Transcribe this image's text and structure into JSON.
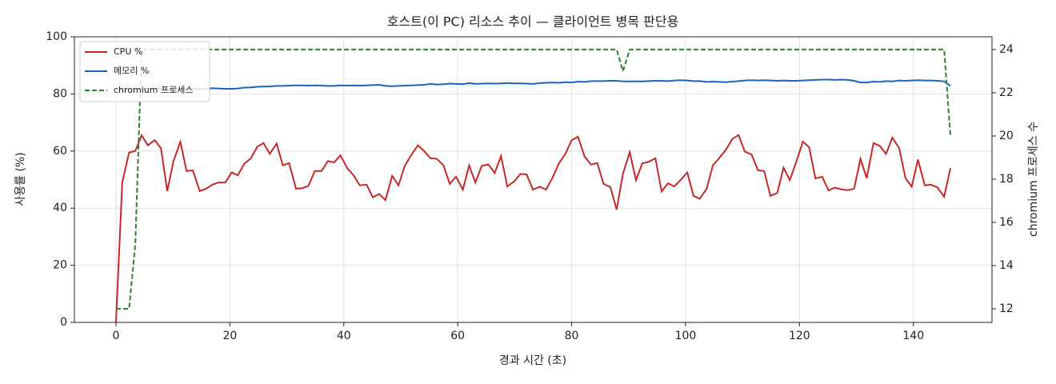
{
  "chart_data": {
    "type": "line",
    "title": "호스트(이 PC) 리소스 추이 — 클라이언트 병목 판단용",
    "xlabel": "경과 시간 (초)",
    "ylabel": "사용률 (%)",
    "y2label": "chromium 프로세스 수",
    "x": [
      0,
      1.1,
      2.3,
      3.4,
      4.5,
      5.6,
      6.8,
      7.9,
      9.0,
      10.1,
      11.3,
      12.4,
      13.5,
      14.7,
      15.8,
      16.9,
      18.0,
      19.2,
      20.3,
      21.4,
      22.5,
      23.7,
      24.8,
      25.9,
      27.0,
      28.2,
      29.3,
      30.4,
      31.6,
      32.7,
      33.8,
      34.9,
      36.1,
      37.2,
      38.3,
      39.4,
      40.6,
      41.7,
      42.8,
      44.0,
      45.1,
      46.2,
      47.3,
      48.5,
      49.6,
      50.7,
      51.8,
      53.0,
      54.1,
      55.2,
      56.3,
      57.5,
      58.6,
      59.7,
      60.9,
      62.0,
      63.1,
      64.2,
      65.4,
      66.5,
      67.6,
      68.7,
      69.9,
      71.0,
      72.1,
      73.2,
      74.4,
      75.5,
      76.6,
      77.8,
      78.9,
      80.0,
      81.1,
      82.3,
      83.4,
      84.5,
      85.6,
      86.8,
      87.9,
      89.0,
      90.2,
      91.3,
      92.4,
      93.5,
      94.7,
      95.8,
      96.9,
      98.0,
      99.2,
      100.3,
      101.4,
      102.5,
      103.7,
      104.8,
      105.9,
      107.1,
      108.2,
      109.3,
      110.4,
      111.6,
      112.7,
      113.8,
      114.9,
      116.1,
      117.2,
      118.3,
      119.4,
      120.6,
      121.7,
      122.8,
      124.0,
      125.1,
      126.2,
      127.3,
      128.5,
      129.6,
      130.7,
      131.8,
      133.0,
      134.1,
      135.2,
      136.3,
      137.5,
      138.6,
      139.7,
      140.8,
      142.0,
      143.1,
      144.2,
      145.4,
      146.5
    ],
    "series": [
      {
        "name": "CPU %",
        "color": "#c62828",
        "dash": false,
        "values": [
          0,
          49,
          59.5,
          60,
          65.5,
          62,
          63.8,
          61,
          46,
          56.5,
          63.2,
          53,
          53.2,
          46,
          46.8,
          48.2,
          49,
          49,
          52.5,
          51.5,
          55.5,
          57.5,
          61.5,
          62.8,
          59,
          62.6,
          55,
          55.8,
          46.8,
          47,
          47.8,
          53,
          53,
          56.5,
          56,
          58.5,
          54,
          51.5,
          48,
          48.2,
          43.8,
          45,
          42.8,
          51.3,
          48,
          54.8,
          58.5,
          62,
          60,
          57.5,
          57.3,
          55,
          48.5,
          51,
          46.5,
          55,
          49,
          54.8,
          55.3,
          52.3,
          58.3,
          47.6,
          49.3,
          52,
          51.8,
          46.5,
          47.5,
          46.5,
          50.5,
          55.8,
          59,
          63.8,
          65,
          58,
          55.3,
          55.8,
          48.5,
          47.4,
          39.5,
          52,
          59.6,
          49.8,
          55.7,
          56.2,
          57.5,
          45.8,
          48.7,
          47.6,
          50,
          52.5,
          44.3,
          43.3,
          46.8,
          55,
          57.5,
          60.5,
          64.2,
          65.6,
          59.8,
          58.8,
          53.3,
          53,
          44.3,
          45.3,
          54.2,
          49.8,
          56,
          63.3,
          61.3,
          50.4,
          51,
          46.2,
          47.2,
          46.6,
          46.3,
          46.8,
          57.3,
          50.5,
          62.8,
          61.8,
          59,
          64.7,
          61,
          50.6,
          47.5,
          57,
          48,
          48.2,
          47.3,
          44,
          54
        ]
      },
      {
        "name": "메모리 %",
        "color": "#1565c0",
        "dash": false,
        "values": [
          81.5,
          81.6,
          81.7,
          81.8,
          81.8,
          81.8,
          81.8,
          81.8,
          81.8,
          81.8,
          81.8,
          81.8,
          81.9,
          81.7,
          81.8,
          82.0,
          81.9,
          81.8,
          81.8,
          81.9,
          82.2,
          82.3,
          82.5,
          82.6,
          82.6,
          82.8,
          82.8,
          82.9,
          83.0,
          83.0,
          82.9,
          83.0,
          82.9,
          82.8,
          82.8,
          83.0,
          82.9,
          83.0,
          82.9,
          83.0,
          83.1,
          83.2,
          82.8,
          82.7,
          82.8,
          82.9,
          83.0,
          83.1,
          83.2,
          83.5,
          83.3,
          83.4,
          83.6,
          83.5,
          83.4,
          83.8,
          83.5,
          83.6,
          83.7,
          83.6,
          83.7,
          83.8,
          83.7,
          83.7,
          83.6,
          83.5,
          83.8,
          83.9,
          84.0,
          83.9,
          84.1,
          84.0,
          84.3,
          84.2,
          84.5,
          84.5,
          84.5,
          84.6,
          84.6,
          84.4,
          84.4,
          84.4,
          84.4,
          84.5,
          84.6,
          84.6,
          84.5,
          84.7,
          84.8,
          84.7,
          84.5,
          84.5,
          84.2,
          84.3,
          84.2,
          84.1,
          84.3,
          84.5,
          84.7,
          84.8,
          84.7,
          84.8,
          84.7,
          84.6,
          84.7,
          84.6,
          84.6,
          84.7,
          84.8,
          84.9,
          85.0,
          85.0,
          84.9,
          85.0,
          84.9,
          84.6,
          84.0,
          84.0,
          84.3,
          84.2,
          84.5,
          84.4,
          84.7,
          84.6,
          84.7,
          84.8,
          84.7,
          84.7,
          84.6,
          84.4,
          82.8
        ]
      },
      {
        "name": "chromium 프로세스",
        "color": "#2e7d32",
        "dash": true,
        "axis": "y2",
        "values": [
          12,
          12,
          12,
          15,
          24,
          24,
          24,
          24,
          24,
          24,
          24,
          24,
          24,
          24,
          24,
          24,
          24,
          24,
          24,
          24,
          24,
          24,
          24,
          24,
          24,
          24,
          24,
          24,
          24,
          24,
          24,
          24,
          24,
          24,
          24,
          24,
          24,
          24,
          24,
          24,
          24,
          24,
          24,
          24,
          24,
          24,
          24,
          24,
          24,
          24,
          24,
          24,
          24,
          24,
          24,
          24,
          24,
          24,
          24,
          24,
          24,
          24,
          24,
          24,
          24,
          24,
          24,
          24,
          24,
          24,
          24,
          24,
          24,
          24,
          24,
          24,
          24,
          24,
          24,
          23,
          24,
          24,
          24,
          24,
          24,
          24,
          24,
          24,
          24,
          24,
          24,
          24,
          24,
          24,
          24,
          24,
          24,
          24,
          24,
          24,
          24,
          24,
          24,
          24,
          24,
          24,
          24,
          24,
          24,
          24,
          24,
          24,
          24,
          24,
          24,
          24,
          24,
          24,
          24,
          24,
          24,
          24,
          24,
          24,
          24,
          24,
          24,
          24,
          24,
          24,
          20
        ]
      }
    ],
    "xlim": [
      -7.3,
      153.8
    ],
    "ylim": [
      0,
      100
    ],
    "y2lim": [
      11.37,
      24.59
    ],
    "xticks": [
      0,
      20,
      40,
      60,
      80,
      100,
      120,
      140
    ],
    "yticks": [
      0,
      20,
      40,
      60,
      80,
      100
    ],
    "y2ticks": [
      12,
      14,
      16,
      18,
      20,
      22,
      24
    ],
    "grid": true,
    "legend": "upper-left"
  }
}
